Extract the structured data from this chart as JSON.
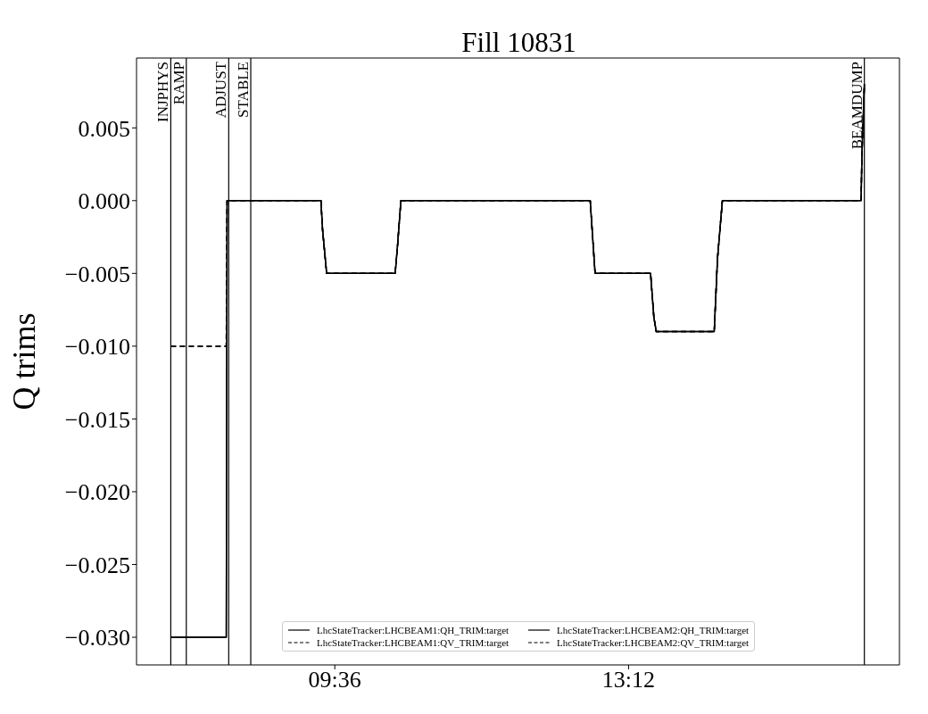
{
  "chart_data": {
    "type": "line",
    "title": "Fill 10831",
    "ylabel": "Q trims",
    "xlim": [
      7.17,
      16.52
    ],
    "xticks": [
      {
        "value": 9.6,
        "label": "09:36"
      },
      {
        "value": 13.2,
        "label": "13:12"
      }
    ],
    "ylim": [
      -0.0319,
      0.0098
    ],
    "yticks": [
      {
        "value": 0.005,
        "label": "0.005"
      },
      {
        "value": 0,
        "label": "0.000"
      },
      {
        "value": -0.005,
        "label": "−0.005"
      },
      {
        "value": -0.01,
        "label": "−0.010"
      },
      {
        "value": -0.015,
        "label": "−0.015"
      },
      {
        "value": -0.02,
        "label": "−0.020"
      },
      {
        "value": -0.025,
        "label": "−0.025"
      },
      {
        "value": -0.03,
        "label": "−0.030"
      }
    ],
    "series": [
      {
        "name": "LhcStateTracker:LHCBEAM1:QH_TRIM:target",
        "color": "#000000",
        "line_style": "solid",
        "x": [
          7.59,
          8.27,
          8.28,
          9.43,
          9.45,
          9.5,
          10.34,
          10.37,
          10.41,
          12.73,
          12.79,
          13.47,
          13.51,
          13.54,
          14.25,
          14.29,
          14.35,
          16.05,
          16.06,
          16.09
        ],
        "values": [
          -0.03,
          -0.03,
          0,
          0,
          -0.002,
          -0.005,
          -0.005,
          -0.003,
          0,
          0,
          -0.005,
          -0.005,
          -0.008,
          -0.009,
          -0.009,
          -0.004,
          0,
          0,
          0.003,
          0.008
        ]
      },
      {
        "name": "LhcStateTracker:LHCBEAM1:QV_TRIM:target",
        "color": "#000000",
        "line_style": "dashed",
        "x": [
          7.59,
          8.27,
          8.28,
          9.43,
          9.45,
          9.5,
          10.34,
          10.37,
          10.41,
          12.73,
          12.79,
          13.47,
          13.51,
          13.54,
          14.25,
          14.29,
          14.35,
          16.05,
          16.06,
          16.09
        ],
        "values": [
          -0.01,
          -0.01,
          0,
          0,
          -0.002,
          -0.005,
          -0.005,
          -0.003,
          0,
          0,
          -0.005,
          -0.005,
          -0.008,
          -0.009,
          -0.009,
          -0.004,
          0,
          0,
          0.003,
          0.008
        ]
      },
      {
        "name": "LhcStateTracker:LHCBEAM2:QH_TRIM:target",
        "color": "#000000",
        "line_style": "solid",
        "x": [
          7.59,
          8.27,
          8.28,
          9.43,
          9.45,
          9.5,
          10.34,
          10.37,
          10.41,
          12.73,
          12.79,
          13.47,
          13.51,
          13.54,
          14.25,
          14.29,
          14.35,
          16.05,
          16.06,
          16.09
        ],
        "values": [
          -0.03,
          -0.03,
          0,
          0,
          -0.002,
          -0.005,
          -0.005,
          -0.003,
          0,
          0,
          -0.005,
          -0.005,
          -0.008,
          -0.009,
          -0.009,
          -0.004,
          0,
          0,
          0.003,
          0.008
        ]
      },
      {
        "name": "LhcStateTracker:LHCBEAM2:QV_TRIM:target",
        "color": "#000000",
        "line_style": "dashed",
        "x": [
          7.59,
          8.27,
          8.28,
          9.43,
          9.45,
          9.5,
          10.34,
          10.37,
          10.41,
          12.73,
          12.79,
          13.47,
          13.51,
          13.54,
          14.25,
          14.29,
          14.35,
          16.05,
          16.06,
          16.09
        ],
        "values": [
          -0.01,
          -0.01,
          0,
          0,
          -0.002,
          -0.005,
          -0.005,
          -0.003,
          0,
          0,
          -0.005,
          -0.005,
          -0.008,
          -0.009,
          -0.009,
          -0.004,
          0,
          0,
          0.003,
          0.008
        ]
      }
    ],
    "ref_lines": [
      {
        "axis": "x",
        "value": 7.59,
        "label": "INJPHYS",
        "color": "#000000"
      },
      {
        "axis": "x",
        "value": 7.78,
        "label": "RAMP",
        "color": "#000000"
      },
      {
        "axis": "x",
        "value": 8.3,
        "label": "ADJUST",
        "color": "#000000"
      },
      {
        "axis": "x",
        "value": 8.57,
        "label": "STABLE",
        "color": "#000000"
      },
      {
        "axis": "x",
        "value": 16.09,
        "label": "BEAMDUMP",
        "color": "#000000"
      }
    ],
    "grid": false,
    "legend": "bottom",
    "marker": "none"
  }
}
